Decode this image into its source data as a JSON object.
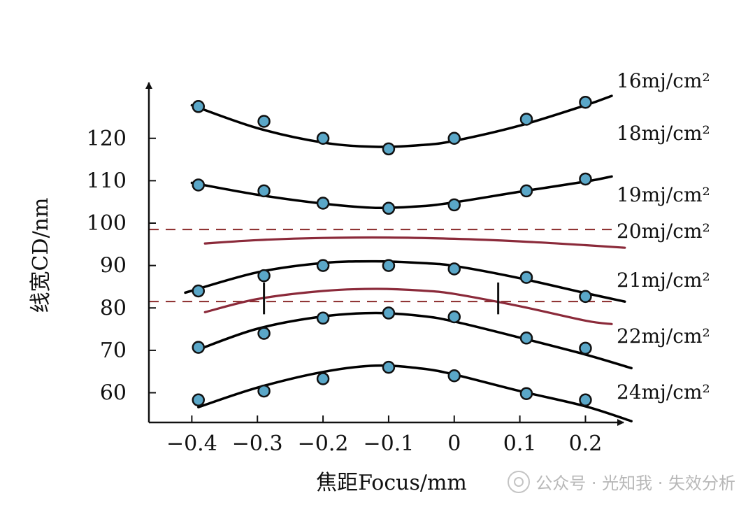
{
  "chart_data": {
    "type": "scatter",
    "title": "",
    "xlabel": "焦距Focus/mm",
    "ylabel": "线宽CD/nm",
    "xlim": [
      -0.41,
      0.24
    ],
    "ylim": [
      52,
      132
    ],
    "x_ticks": [
      -0.4,
      -0.3,
      -0.2,
      -0.1,
      0,
      0.1,
      0.2
    ],
    "x_tick_labels": [
      "−0.4",
      "−0.3",
      "−0.2",
      "−0.1",
      "0",
      "0.1",
      "0.2"
    ],
    "y_ticks": [
      60,
      70,
      80,
      90,
      100,
      110,
      120
    ],
    "y_tick_labels": [
      "60",
      "70",
      "80",
      "90",
      "100",
      "110",
      "120"
    ],
    "grid": false,
    "legend": "right",
    "reference_lines": [
      {
        "axis": "y",
        "value": 98.5,
        "style": "dashed",
        "color": "#8b2a2a"
      },
      {
        "axis": "y",
        "value": 81.5,
        "style": "dashed",
        "color": "#8b2a2a"
      }
    ],
    "markers": [
      {
        "x": -0.29,
        "y_from": 78.5,
        "y_to": 86
      },
      {
        "x": 0.067,
        "y_from": 78.5,
        "y_to": 86
      }
    ],
    "series": [
      {
        "name": "16mj/cm²",
        "color": "#000000",
        "points_x": [
          -0.39,
          -0.29,
          -0.2,
          -0.1,
          0,
          0.11,
          0.2
        ],
        "points_y": [
          127.5,
          124,
          120,
          117.5,
          120,
          124.5,
          128.5
        ],
        "curve_x": [
          -0.4,
          -0.3,
          -0.2,
          -0.12,
          -0.05,
          0,
          0.1,
          0.2,
          0.24
        ],
        "curve_y": [
          127.8,
          122.4,
          119,
          118,
          118.4,
          119.4,
          123,
          127.8,
          130
        ]
      },
      {
        "name": "18mj/cm²",
        "color": "#000000",
        "points_x": [
          -0.39,
          -0.29,
          -0.2,
          -0.1,
          0,
          0.11,
          0.2
        ],
        "points_y": [
          109,
          107.6,
          104.7,
          103.5,
          104.3,
          107.6,
          110.4
        ],
        "curve_x": [
          -0.4,
          -0.3,
          -0.2,
          -0.12,
          -0.05,
          0,
          0.1,
          0.2,
          0.24
        ],
        "curve_y": [
          109.5,
          106.7,
          104.6,
          103.6,
          104,
          104.9,
          107.4,
          109.8,
          111
        ]
      },
      {
        "name": "19mj/cm²",
        "color": "#8b2a3a",
        "points_x": [],
        "points_y": [],
        "curve_x": [
          -0.38,
          -0.3,
          -0.2,
          -0.1,
          0,
          0.1,
          0.2,
          0.26
        ],
        "curve_y": [
          95.2,
          96,
          96.5,
          96.6,
          96.3,
          95.7,
          94.8,
          94.2
        ]
      },
      {
        "name": "20mj/cm²",
        "color": "#000000",
        "points_x": [
          -0.39,
          -0.29,
          -0.2,
          -0.1,
          0,
          0.11,
          0.2
        ],
        "points_y": [
          84,
          87.6,
          90,
          90,
          89.2,
          87.2,
          82.7
        ],
        "curve_x": [
          -0.41,
          -0.3,
          -0.2,
          -0.12,
          -0.05,
          0,
          0.1,
          0.2,
          0.26
        ],
        "curve_y": [
          83.6,
          88.4,
          90.6,
          91,
          90.6,
          89.9,
          87,
          83.5,
          81.5
        ]
      },
      {
        "name": "21mj/cm²",
        "color": "#8b2a3a",
        "points_x": [],
        "points_y": [],
        "curve_x": [
          -0.38,
          -0.3,
          -0.2,
          -0.12,
          -0.05,
          0,
          0.1,
          0.2,
          0.24
        ],
        "curve_y": [
          79,
          82.1,
          84,
          84.5,
          84.1,
          83.3,
          80.4,
          77,
          76.2
        ]
      },
      {
        "name": "22mj/cm²",
        "color": "#000000",
        "points_x": [
          -0.39,
          -0.29,
          -0.2,
          -0.1,
          0,
          0.11,
          0.2
        ],
        "points_y": [
          70.7,
          74,
          77.6,
          78.8,
          77.9,
          72.9,
          70.5
        ],
        "curve_x": [
          -0.39,
          -0.3,
          -0.2,
          -0.12,
          -0.05,
          0,
          0.1,
          0.2,
          0.27
        ],
        "curve_y": [
          70.2,
          75.1,
          78,
          78.8,
          78.1,
          76.8,
          73,
          69,
          65.8
        ]
      },
      {
        "name": "24mj/cm²",
        "color": "#000000",
        "points_x": [
          -0.39,
          -0.29,
          -0.2,
          -0.1,
          0,
          0.11,
          0.2
        ],
        "points_y": [
          58.3,
          60.4,
          63.3,
          66,
          64,
          59.8,
          58.3
        ],
        "curve_x": [
          -0.39,
          -0.3,
          -0.2,
          -0.12,
          -0.05,
          0,
          0.1,
          0.2,
          0.27
        ],
        "curve_y": [
          56.6,
          61.2,
          64.9,
          66.4,
          65.7,
          64.3,
          60.4,
          56.8,
          53.3
        ]
      }
    ]
  },
  "watermark": {
    "text": "公众号 · 光知我 · 失效分析"
  }
}
